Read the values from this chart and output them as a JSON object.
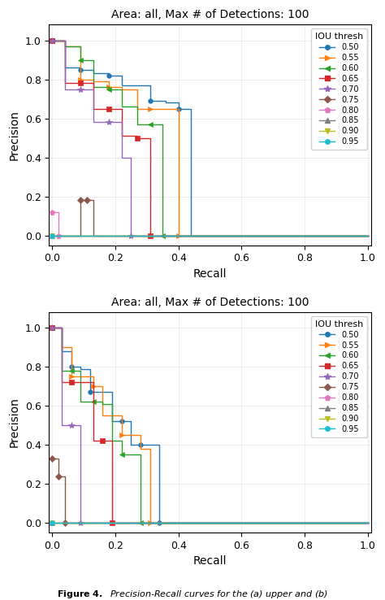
{
  "title": "Area: all, Max # of Detections: 100",
  "xlabel": "Recall",
  "ylabel": "Precision",
  "xlim": [
    -0.01,
    1.01
  ],
  "ylim": [
    -0.05,
    1.08
  ],
  "colors": [
    "#1f77b4",
    "#ff7f0e",
    "#2ca02c",
    "#d62728",
    "#9467bd",
    "#8c564b",
    "#e377c2",
    "#7f7f7f",
    "#bcbd22",
    "#17becf"
  ],
  "markers": [
    "o",
    ">",
    "<",
    "s",
    "*",
    "D",
    "p",
    "^",
    "v",
    "o"
  ],
  "legend_labels": [
    "0.50",
    "0.55",
    "0.60",
    "0.65",
    "0.70",
    "0.75",
    "0.80",
    "0.85",
    "0.90",
    "0.95"
  ],
  "curve1": {
    "series": [
      {
        "r": [
          0.0,
          0.04,
          0.04,
          0.09,
          0.09,
          0.13,
          0.13,
          0.18,
          0.18,
          0.22,
          0.22,
          0.27,
          0.27,
          0.31,
          0.31,
          0.36,
          0.36,
          0.4,
          0.4,
          0.44,
          0.44,
          1.0
        ],
        "p": [
          1.0,
          1.0,
          0.86,
          0.86,
          0.85,
          0.85,
          0.83,
          0.83,
          0.82,
          0.82,
          0.77,
          0.77,
          0.77,
          0.77,
          0.69,
          0.69,
          0.68,
          0.68,
          0.65,
          0.65,
          0.0,
          0.0
        ],
        "mi": [
          0,
          4,
          8,
          14,
          18
        ]
      },
      {
        "r": [
          0.0,
          0.04,
          0.04,
          0.09,
          0.09,
          0.13,
          0.13,
          0.18,
          0.18,
          0.22,
          0.22,
          0.27,
          0.27,
          0.31,
          0.31,
          0.36,
          0.36,
          0.4,
          0.4,
          1.0
        ],
        "p": [
          1.0,
          1.0,
          0.97,
          0.97,
          0.8,
          0.8,
          0.79,
          0.79,
          0.76,
          0.76,
          0.75,
          0.75,
          0.65,
          0.65,
          0.65,
          0.65,
          0.65,
          0.65,
          0.0,
          0.0
        ],
        "mi": [
          0,
          4,
          8,
          14,
          18
        ]
      },
      {
        "r": [
          0.0,
          0.04,
          0.04,
          0.09,
          0.09,
          0.13,
          0.13,
          0.18,
          0.18,
          0.22,
          0.22,
          0.27,
          0.27,
          0.31,
          0.31,
          0.35,
          0.35,
          1.0
        ],
        "p": [
          1.0,
          1.0,
          0.97,
          0.97,
          0.9,
          0.9,
          0.76,
          0.76,
          0.75,
          0.75,
          0.66,
          0.66,
          0.57,
          0.57,
          0.57,
          0.57,
          0.0,
          0.0
        ],
        "mi": [
          0,
          4,
          8,
          14,
          16
        ]
      },
      {
        "r": [
          0.0,
          0.04,
          0.04,
          0.09,
          0.09,
          0.13,
          0.13,
          0.18,
          0.18,
          0.22,
          0.22,
          0.27,
          0.27,
          0.31,
          0.31,
          1.0
        ],
        "p": [
          1.0,
          1.0,
          0.78,
          0.78,
          0.78,
          0.78,
          0.65,
          0.65,
          0.65,
          0.65,
          0.51,
          0.51,
          0.5,
          0.5,
          0.0,
          0.0
        ],
        "mi": [
          0,
          4,
          8,
          12,
          14
        ]
      },
      {
        "r": [
          0.0,
          0.04,
          0.04,
          0.09,
          0.09,
          0.13,
          0.13,
          0.18,
          0.18,
          0.22,
          0.22,
          0.25,
          0.25,
          1.0
        ],
        "p": [
          1.0,
          1.0,
          0.75,
          0.75,
          0.75,
          0.75,
          0.58,
          0.58,
          0.58,
          0.58,
          0.4,
          0.4,
          0.0,
          0.0
        ],
        "mi": [
          0,
          4,
          8,
          12
        ]
      },
      {
        "r": [
          0.0,
          0.09,
          0.09,
          0.11,
          0.11,
          0.13,
          0.13,
          1.0
        ],
        "p": [
          0.0,
          0.0,
          0.18,
          0.18,
          0.18,
          0.18,
          0.0,
          0.0
        ],
        "mi": [
          2,
          4
        ]
      },
      {
        "r": [
          0.0,
          0.02,
          0.02,
          1.0
        ],
        "p": [
          0.12,
          0.12,
          0.0,
          0.0
        ],
        "mi": [
          0,
          2
        ]
      },
      {
        "r": [
          0.0,
          1.0
        ],
        "p": [
          0.0,
          0.0
        ],
        "mi": [
          0
        ]
      },
      {
        "r": [
          0.0,
          1.0
        ],
        "p": [
          0.0,
          0.0
        ],
        "mi": [
          0
        ]
      },
      {
        "r": [
          0.0,
          1.0
        ],
        "p": [
          0.0,
          0.0
        ],
        "mi": [
          0
        ]
      }
    ]
  },
  "curve2": {
    "series": [
      {
        "r": [
          0.0,
          0.03,
          0.03,
          0.06,
          0.06,
          0.09,
          0.09,
          0.12,
          0.12,
          0.16,
          0.16,
          0.19,
          0.19,
          0.22,
          0.22,
          0.25,
          0.25,
          0.28,
          0.28,
          0.31,
          0.31,
          0.34,
          0.34,
          1.0
        ],
        "p": [
          1.0,
          1.0,
          0.88,
          0.88,
          0.8,
          0.8,
          0.79,
          0.79,
          0.67,
          0.67,
          0.67,
          0.67,
          0.52,
          0.52,
          0.52,
          0.52,
          0.4,
          0.4,
          0.4,
          0.4,
          0.4,
          0.4,
          0.0,
          0.0
        ],
        "mi": [
          0,
          4,
          8,
          14,
          18,
          22
        ]
      },
      {
        "r": [
          0.0,
          0.03,
          0.03,
          0.06,
          0.06,
          0.09,
          0.09,
          0.13,
          0.13,
          0.16,
          0.16,
          0.19,
          0.19,
          0.22,
          0.22,
          0.25,
          0.25,
          0.28,
          0.28,
          0.31,
          0.31,
          1.0
        ],
        "p": [
          1.0,
          1.0,
          0.9,
          0.9,
          0.75,
          0.75,
          0.75,
          0.75,
          0.7,
          0.7,
          0.55,
          0.55,
          0.55,
          0.55,
          0.45,
          0.45,
          0.45,
          0.45,
          0.38,
          0.38,
          0.0,
          0.0
        ],
        "mi": [
          0,
          4,
          8,
          14,
          20
        ]
      },
      {
        "r": [
          0.0,
          0.03,
          0.03,
          0.06,
          0.06,
          0.09,
          0.09,
          0.13,
          0.13,
          0.16,
          0.16,
          0.19,
          0.19,
          0.22,
          0.22,
          0.25,
          0.25,
          0.28,
          0.28,
          1.0
        ],
        "p": [
          1.0,
          1.0,
          0.78,
          0.78,
          0.78,
          0.78,
          0.62,
          0.62,
          0.62,
          0.62,
          0.61,
          0.61,
          0.42,
          0.42,
          0.35,
          0.35,
          0.35,
          0.35,
          0.0,
          0.0
        ],
        "mi": [
          0,
          4,
          8,
          14,
          18
        ]
      },
      {
        "r": [
          0.0,
          0.03,
          0.03,
          0.06,
          0.06,
          0.09,
          0.09,
          0.13,
          0.13,
          0.16,
          0.16,
          0.19,
          0.19,
          1.0
        ],
        "p": [
          1.0,
          1.0,
          0.72,
          0.72,
          0.72,
          0.72,
          0.72,
          0.72,
          0.42,
          0.42,
          0.42,
          0.42,
          0.0,
          0.0
        ],
        "mi": [
          0,
          4,
          10,
          12
        ]
      },
      {
        "r": [
          0.0,
          0.03,
          0.03,
          0.06,
          0.06,
          0.09,
          0.09,
          1.0
        ],
        "p": [
          1.0,
          1.0,
          0.5,
          0.5,
          0.5,
          0.5,
          0.0,
          0.0
        ],
        "mi": [
          0,
          4,
          6
        ]
      },
      {
        "r": [
          0.0,
          0.02,
          0.02,
          0.04,
          0.04,
          1.0
        ],
        "p": [
          0.33,
          0.33,
          0.24,
          0.24,
          0.0,
          0.0
        ],
        "mi": [
          0,
          2,
          4
        ]
      },
      {
        "r": [
          0.0,
          1.0
        ],
        "p": [
          0.0,
          0.0
        ],
        "mi": [
          0
        ]
      },
      {
        "r": [
          0.0,
          1.0
        ],
        "p": [
          0.0,
          0.0
        ],
        "mi": [
          0
        ]
      },
      {
        "r": [
          0.0,
          1.0
        ],
        "p": [
          0.0,
          0.0
        ],
        "mi": [
          0
        ]
      },
      {
        "r": [
          0.0,
          1.0
        ],
        "p": [
          0.0,
          0.0
        ],
        "mi": [
          0
        ]
      }
    ]
  }
}
